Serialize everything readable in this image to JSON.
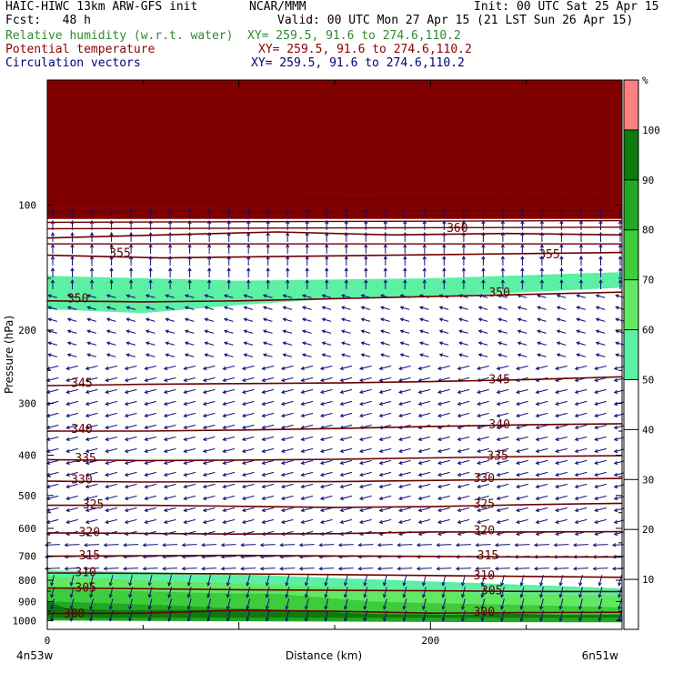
{
  "header": {
    "line1_left": "HAIC-HIWC 13km ARW-GFS init",
    "line1_center": "NCAR/MMM",
    "line1_right": "Init: 00 UTC Sat 25 Apr 15",
    "fcst": "Fcst:   48 h",
    "valid": "Valid: 00 UTC Mon 27 Apr 15 (21 LST Sun 26 Apr 15)",
    "field1": "Relative humidity (w.r.t. water)",
    "field1_xy": "XY= 259.5, 91.6 to 274.6,110.2",
    "field2": "Potential temperature",
    "field2_xy": "XY= 259.5, 91.6 to 274.6,110.2",
    "field3": "Circulation vectors",
    "field3_xy": "XY= 259.5, 91.6 to 274.6,110.2"
  },
  "colors": {
    "field1": "#2e8b2e",
    "field2": "#8b0000",
    "field3": "#00007a",
    "theta_line": "#6b0000",
    "vector": "#10107a",
    "top_band": "#800000"
  },
  "chart_data": {
    "type": "heatmap",
    "xlabel": "Distance (km)",
    "ylabel": "Pressure (hPa)",
    "x_ticks": [
      "0",
      "200"
    ],
    "x_range": [
      0,
      300
    ],
    "y_ticks": [
      "100",
      "200",
      "300",
      "400",
      "500",
      "600",
      "700",
      "800",
      "900",
      "1000"
    ],
    "y_range": [
      50,
      1050
    ],
    "y_scale": "log",
    "endpoint_labels": {
      "left": "4n53w",
      "right": "6n51w"
    },
    "colorbar": {
      "unit": "%",
      "levels": [
        "10",
        "20",
        "30",
        "40",
        "50",
        "60",
        "70",
        "80",
        "90",
        "100"
      ],
      "colors": [
        "#ffffff",
        "#ffffff",
        "#ffffff",
        "#ffffff",
        "#ffffff",
        "#5cf0a4",
        "#62e862",
        "#3ccc3c",
        "#22a822",
        "#0e7a0e",
        "#ff8080"
      ]
    },
    "rh_regions": [
      {
        "name": "top",
        "color": "#800000",
        "top": [
          [
            0,
            50
          ],
          [
            300,
            50
          ]
        ],
        "bottom": [
          [
            0,
            108
          ],
          [
            300,
            108
          ]
        ]
      },
      {
        "name": "upper-band",
        "color": "#5cf0a4",
        "top": [
          [
            0,
            148
          ],
          [
            100,
            152
          ],
          [
            200,
            150
          ],
          [
            300,
            145
          ]
        ],
        "bottom": [
          [
            0,
            178
          ],
          [
            50,
            182
          ],
          [
            100,
            174
          ],
          [
            150,
            168
          ],
          [
            200,
            166
          ],
          [
            250,
            162
          ],
          [
            300,
            158
          ]
        ]
      },
      {
        "name": "low-60",
        "color": "#5cf0a4",
        "top": [
          [
            0,
            757
          ],
          [
            50,
            764
          ],
          [
            100,
            773
          ],
          [
            150,
            790
          ],
          [
            200,
            805
          ],
          [
            250,
            820
          ],
          [
            300,
            837
          ]
        ],
        "bottom": [
          [
            0,
            1050
          ],
          [
            300,
            1050
          ]
        ]
      },
      {
        "name": "low-70",
        "color": "#62e862",
        "top": [
          [
            0,
            783
          ],
          [
            50,
            800
          ],
          [
            100,
            815
          ],
          [
            150,
            832
          ],
          [
            200,
            852
          ],
          [
            250,
            863
          ],
          [
            300,
            872
          ]
        ],
        "bottom": [
          [
            0,
            1050
          ],
          [
            300,
            1050
          ]
        ]
      },
      {
        "name": "low-80",
        "color": "#3ccc3c",
        "top": [
          [
            0,
            833
          ],
          [
            30,
            845
          ],
          [
            80,
            858
          ],
          [
            120,
            862
          ],
          [
            150,
            885
          ],
          [
            170,
            900
          ],
          [
            200,
            908
          ],
          [
            250,
            918
          ],
          [
            300,
            930
          ]
        ],
        "bottom": [
          [
            0,
            1050
          ],
          [
            300,
            1050
          ]
        ]
      },
      {
        "name": "low-90",
        "color": "#22a822",
        "top": [
          [
            0,
            900
          ],
          [
            20,
            905
          ],
          [
            60,
            918
          ],
          [
            100,
            935
          ],
          [
            140,
            952
          ],
          [
            180,
            962
          ],
          [
            220,
            970
          ],
          [
            260,
            968
          ],
          [
            300,
            965
          ]
        ],
        "bottom": [
          [
            0,
            1050
          ],
          [
            300,
            1050
          ]
        ]
      },
      {
        "name": "low-90-bump",
        "color": "#0e7a0e",
        "top": [
          [
            0,
            900
          ],
          [
            10,
            935
          ],
          [
            40,
            945
          ],
          [
            80,
            942
          ],
          [
            110,
            938
          ],
          [
            140,
            950
          ],
          [
            170,
            965
          ],
          [
            210,
            968
          ],
          [
            240,
            962
          ],
          [
            270,
            970
          ],
          [
            300,
            968
          ]
        ],
        "bottom": [
          [
            0,
            985
          ],
          [
            300,
            985
          ]
        ]
      },
      {
        "name": "below-ground",
        "color": "#ffffff",
        "top": [
          [
            0,
            1000
          ],
          [
            100,
            1004
          ],
          [
            200,
            1008
          ],
          [
            300,
            1010
          ]
        ],
        "bottom": [
          [
            0,
            1050
          ],
          [
            300,
            1050
          ]
        ]
      }
    ],
    "theta_contours": [
      {
        "value": "300",
        "points": [
          [
            0,
            962
          ],
          [
            50,
            960
          ],
          [
            100,
            945
          ],
          [
            150,
            950
          ],
          [
            200,
            960
          ],
          [
            250,
            957
          ],
          [
            300,
            955
          ]
        ],
        "label_at": [
          [
            14,
            958
          ],
          [
            228,
            950
          ]
        ]
      },
      {
        "value": "305",
        "points": [
          [
            0,
            835
          ],
          [
            50,
            838
          ],
          [
            100,
            843
          ],
          [
            150,
            846
          ],
          [
            200,
            848
          ],
          [
            250,
            851
          ],
          [
            300,
            852
          ]
        ],
        "label_at": [
          [
            20,
            831
          ],
          [
            232,
            843
          ]
        ]
      },
      {
        "value": "310",
        "points": [
          [
            0,
            768
          ],
          [
            50,
            770
          ],
          [
            100,
            772
          ],
          [
            150,
            775
          ],
          [
            200,
            779
          ],
          [
            250,
            783
          ],
          [
            300,
            787
          ]
        ],
        "label_at": [
          [
            20,
            763
          ],
          [
            228,
            776
          ]
        ]
      },
      {
        "value": "315",
        "points": [
          [
            0,
            700
          ],
          [
            50,
            698
          ],
          [
            100,
            697
          ],
          [
            150,
            699
          ],
          [
            200,
            701
          ],
          [
            250,
            703
          ],
          [
            300,
            703
          ]
        ],
        "label_at": [
          [
            22,
            695
          ],
          [
            230,
            695
          ]
        ]
      },
      {
        "value": "320",
        "points": [
          [
            0,
            615
          ],
          [
            50,
            617
          ],
          [
            100,
            619
          ],
          [
            150,
            618
          ],
          [
            200,
            612
          ],
          [
            250,
            612
          ],
          [
            300,
            611
          ]
        ],
        "label_at": [
          [
            22,
            610
          ],
          [
            228,
            605
          ]
        ]
      },
      {
        "value": "325",
        "points": [
          [
            0,
            528
          ],
          [
            50,
            528
          ],
          [
            100,
            531
          ],
          [
            150,
            534
          ],
          [
            200,
            532
          ],
          [
            250,
            526
          ],
          [
            300,
            522
          ]
        ],
        "label_at": [
          [
            24,
            524
          ],
          [
            228,
            523
          ]
        ]
      },
      {
        "value": "330",
        "points": [
          [
            0,
            462
          ],
          [
            50,
            464
          ],
          [
            100,
            463
          ],
          [
            150,
            463
          ],
          [
            200,
            460
          ],
          [
            250,
            457
          ],
          [
            300,
            455
          ]
        ],
        "label_at": [
          [
            18,
            456
          ],
          [
            228,
            452
          ]
        ]
      },
      {
        "value": "335",
        "points": [
          [
            0,
            410
          ],
          [
            50,
            412
          ],
          [
            100,
            411
          ],
          [
            150,
            409
          ],
          [
            200,
            406
          ],
          [
            250,
            403
          ],
          [
            300,
            401
          ]
        ],
        "label_at": [
          [
            20,
            405
          ],
          [
            235,
            400
          ]
        ]
      },
      {
        "value": "340",
        "points": [
          [
            0,
            350
          ],
          [
            50,
            350
          ],
          [
            100,
            348
          ],
          [
            150,
            345
          ],
          [
            200,
            341
          ],
          [
            250,
            338
          ],
          [
            300,
            336
          ]
        ],
        "label_at": [
          [
            18,
            345
          ],
          [
            236,
            336
          ]
        ]
      },
      {
        "value": "345",
        "points": [
          [
            0,
            272
          ],
          [
            50,
            270
          ],
          [
            100,
            269
          ],
          [
            150,
            268
          ],
          [
            200,
            266
          ],
          [
            250,
            263
          ],
          [
            300,
            259
          ]
        ],
        "label_at": [
          [
            18,
            267
          ],
          [
            236,
            262
          ]
        ]
      },
      {
        "value": "350",
        "points": [
          [
            0,
            170
          ],
          [
            50,
            171
          ],
          [
            100,
            170
          ],
          [
            150,
            168
          ],
          [
            200,
            166
          ],
          [
            250,
            164
          ],
          [
            300,
            162
          ]
        ],
        "label_at": [
          [
            16,
            167
          ],
          [
            236,
            162
          ]
        ]
      },
      {
        "value": "355",
        "points": [
          [
            0,
            132
          ],
          [
            60,
            134
          ],
          [
            120,
            133
          ],
          [
            180,
            132
          ],
          [
            240,
            131
          ],
          [
            300,
            130
          ]
        ],
        "label_at": [
          [
            38,
            130
          ],
          [
            262,
            131
          ]
        ]
      },
      {
        "value": "360",
        "points": [
          [
            0,
            120
          ],
          [
            60,
            118
          ],
          [
            120,
            116
          ],
          [
            180,
            118
          ],
          [
            240,
            117
          ],
          [
            300,
            118
          ]
        ],
        "label_at": [
          [
            214,
            113
          ]
        ]
      }
    ],
    "upper_contours": [
      [
        [
          0,
          98
        ],
        [
          300,
          96
        ]
      ],
      [
        [
          0,
          104
        ],
        [
          300,
          103
        ]
      ],
      [
        [
          0,
          110
        ],
        [
          300,
          109
        ]
      ],
      [
        [
          0,
          114
        ],
        [
          300,
          113
        ]
      ],
      [
        [
          0,
          124
        ],
        [
          300,
          124
        ]
      ]
    ],
    "vectors": [
      {
        "p_min": 100,
        "p_max": 160,
        "u": 0,
        "v": -1,
        "len": 10
      },
      {
        "p_min": 160,
        "p_max": 240,
        "u": -1,
        "v": -0.3,
        "len": 10
      },
      {
        "p_min": 240,
        "p_max": 640,
        "u": -1,
        "v": 0.25,
        "len": 13
      },
      {
        "p_min": 640,
        "p_max": 760,
        "u": -1,
        "v": 0.05,
        "len": 16
      },
      {
        "p_min": 760,
        "p_max": 1000,
        "u": -0.25,
        "v": 1,
        "len": 12
      }
    ]
  }
}
